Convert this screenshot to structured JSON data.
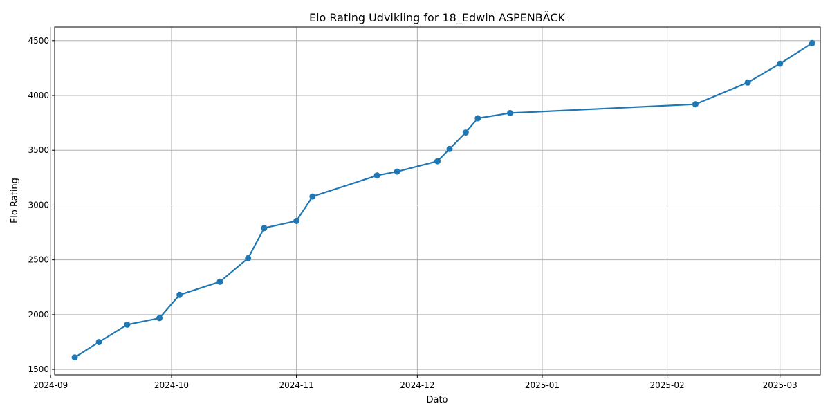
{
  "chart_data": {
    "type": "line",
    "title": "Elo Rating Udvikling for 18_Edwin ASPENBÄCK",
    "xlabel": "Dato",
    "ylabel": "Elo Rating",
    "x_axis_type": "date",
    "xlim": [
      "2024-09-02",
      "2025-03-11"
    ],
    "ylim": [
      1450,
      4625
    ],
    "x_ticks": [
      "2024-09",
      "2024-10",
      "2024-11",
      "2024-12",
      "2025-01",
      "2025-02",
      "2025-03"
    ],
    "y_ticks": [
      1500,
      2000,
      2500,
      3000,
      3500,
      4000,
      4500
    ],
    "grid": true,
    "line_color": "#1f77b4",
    "series": [
      {
        "x": [
          "2024-09-07",
          "2024-09-13",
          "2024-09-20",
          "2024-09-28",
          "2024-10-03",
          "2024-10-13",
          "2024-10-20",
          "2024-10-24",
          "2024-11-01",
          "2024-11-05",
          "2024-11-21",
          "2024-11-26",
          "2024-12-06",
          "2024-12-09",
          "2024-12-13",
          "2024-12-16",
          "2024-12-24",
          "2025-02-08",
          "2025-02-21",
          "2025-03-01",
          "2025-03-09"
        ],
        "y": [
          1610,
          1750,
          1908,
          1968,
          2180,
          2300,
          2515,
          2790,
          2855,
          3078,
          3270,
          3305,
          3400,
          3512,
          3662,
          3792,
          3840,
          3920,
          4118,
          4290,
          4478
        ]
      }
    ]
  }
}
